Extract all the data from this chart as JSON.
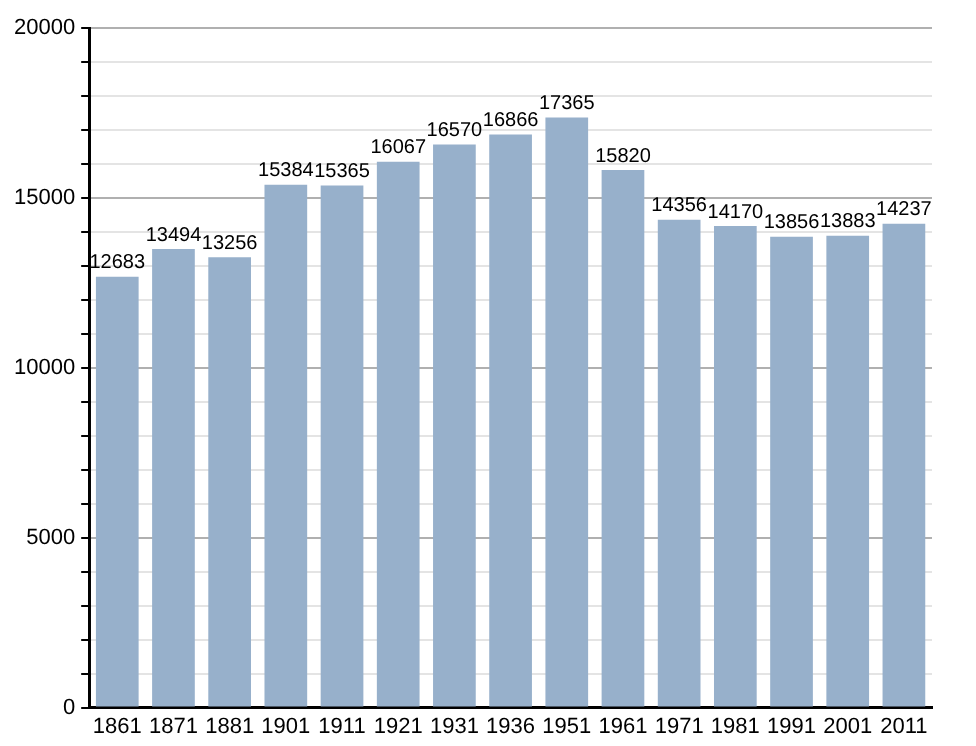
{
  "chart_data": {
    "type": "bar",
    "categories": [
      "1861",
      "1871",
      "1881",
      "1901",
      "1911",
      "1921",
      "1931",
      "1936",
      "1951",
      "1961",
      "1971",
      "1981",
      "1991",
      "2001",
      "2011"
    ],
    "values": [
      12683,
      13494,
      13256,
      15384,
      15365,
      16067,
      16570,
      16866,
      17365,
      15820,
      14356,
      14170,
      13856,
      13883,
      14237
    ],
    "color": "#97b0cb",
    "ylim": [
      0,
      20000
    ],
    "yticks": [
      0,
      {
        "value": 1000,
        "label": null
      },
      {
        "value": 2000,
        "label": null
      },
      {
        "value": 3000,
        "label": null
      },
      {
        "value": 4000,
        "label": null
      },
      5000,
      {
        "value": 6000,
        "label": null
      },
      {
        "value": 7000,
        "label": null
      },
      {
        "value": 8000,
        "label": null
      },
      {
        "value": 9000,
        "label": null
      },
      10000,
      {
        "value": 11000,
        "label": null
      },
      {
        "value": 12000,
        "label": null
      },
      {
        "value": 13000,
        "label": null
      },
      {
        "value": 14000,
        "label": null
      },
      15000,
      {
        "value": 16000,
        "label": null
      },
      {
        "value": 17000,
        "label": null
      },
      {
        "value": 18000,
        "label": null
      },
      {
        "value": 19000,
        "label": null
      },
      20000
    ],
    "grid": "y",
    "data_labels": true
  }
}
